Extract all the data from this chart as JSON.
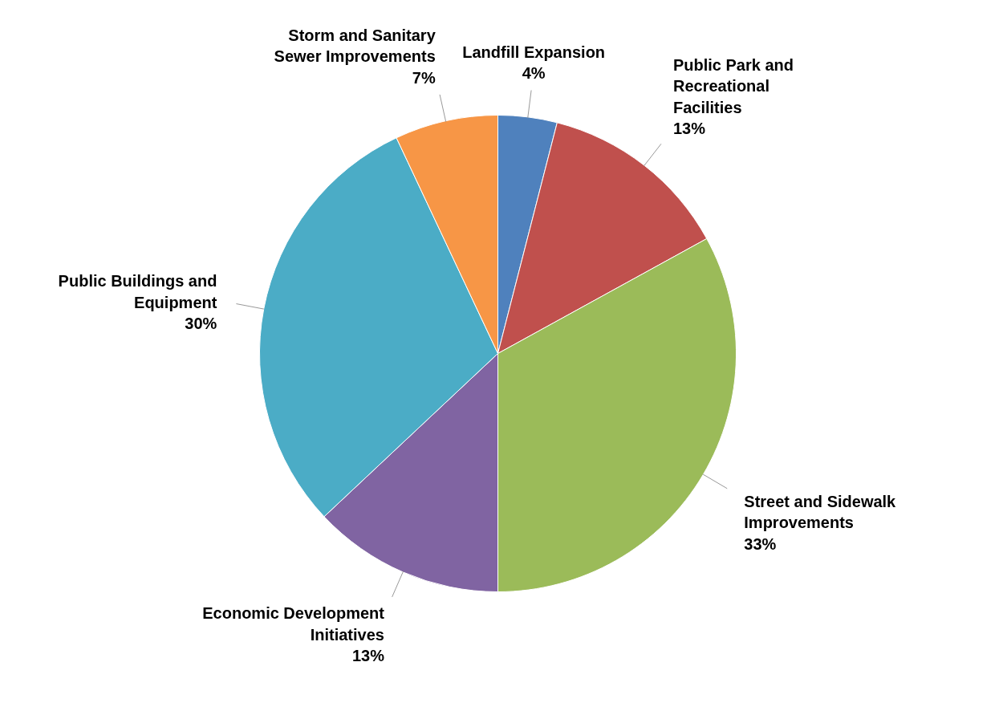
{
  "chart_data": {
    "type": "pie",
    "categories": [
      "Landfill Expansion",
      "Public Park and Recreational Facilities",
      "Street and Sidewalk Improvements",
      "Economic Development Initiatives",
      "Public Buildings and Equipment",
      "Storm and Sanitary Sewer Improvements"
    ],
    "values": [
      4,
      13,
      33,
      13,
      30,
      7
    ],
    "value_labels": [
      "4%",
      "13%",
      "33%",
      "13%",
      "30%",
      "7%"
    ],
    "colors": [
      "#4f81bd",
      "#c0504d",
      "#9bbb59",
      "#8064a2",
      "#4bacc6",
      "#f79646"
    ]
  }
}
